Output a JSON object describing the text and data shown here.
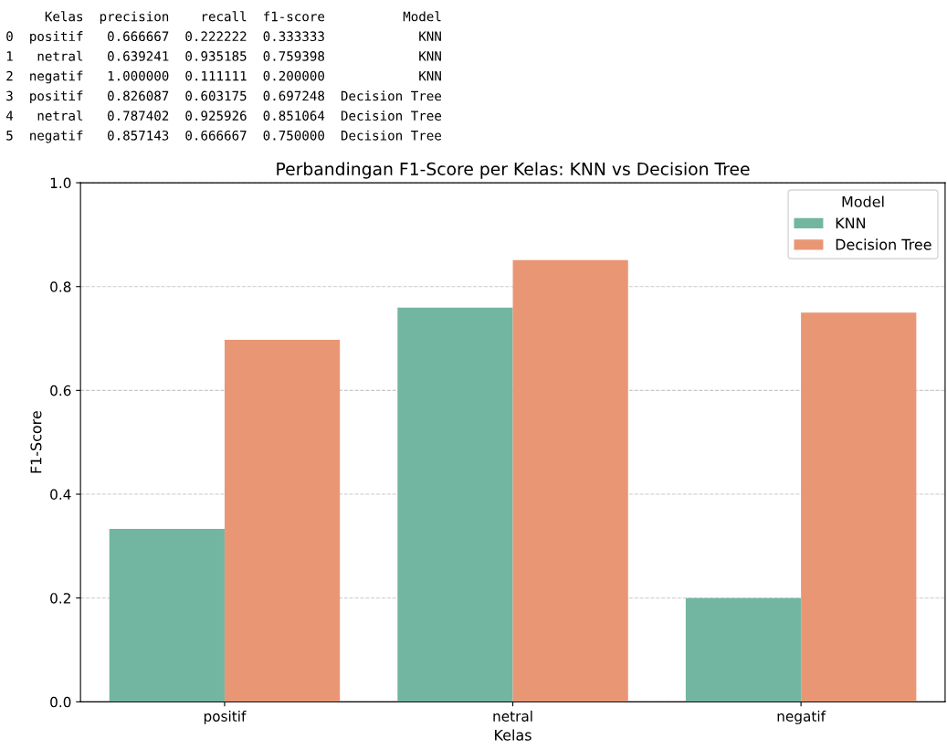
{
  "chart_data": {
    "type": "bar",
    "title": "Perbandingan F1-Score per Kelas: KNN vs Decision Tree",
    "xlabel": "Kelas",
    "ylabel": "F1-Score",
    "legend_title": "Model",
    "categories": [
      "positif",
      "netral",
      "negatif"
    ],
    "series": [
      {
        "name": "KNN",
        "color": "#72b6a1",
        "values": [
          0.333333,
          0.759398,
          0.2
        ]
      },
      {
        "name": "Decision Tree",
        "color": "#e99675",
        "values": [
          0.697248,
          0.851064,
          0.75
        ]
      }
    ],
    "ylim": [
      0,
      1.0
    ],
    "yticks": [
      {
        "value": 0,
        "label": "0.0"
      },
      0.2,
      0.4,
      0.6,
      0.8,
      {
        "value": 1.0,
        "label": "1.0"
      }
    ],
    "grid": "y",
    "legend": "top right",
    "annotations": [
      "     Kelas  precision    recall  f1-score          Model",
      "0  positif   0.666667  0.222222  0.333333            KNN",
      "1   netral   0.639241  0.935185  0.759398            KNN",
      "2  negatif   1.000000  0.111111  0.200000            KNN",
      "3  positif   0.826087  0.603175  0.697248  Decision Tree",
      "4   netral   0.787402  0.925926  0.851064  Decision Tree",
      "5  negatif   0.857143  0.666667  0.750000  Decision Tree"
    ]
  }
}
